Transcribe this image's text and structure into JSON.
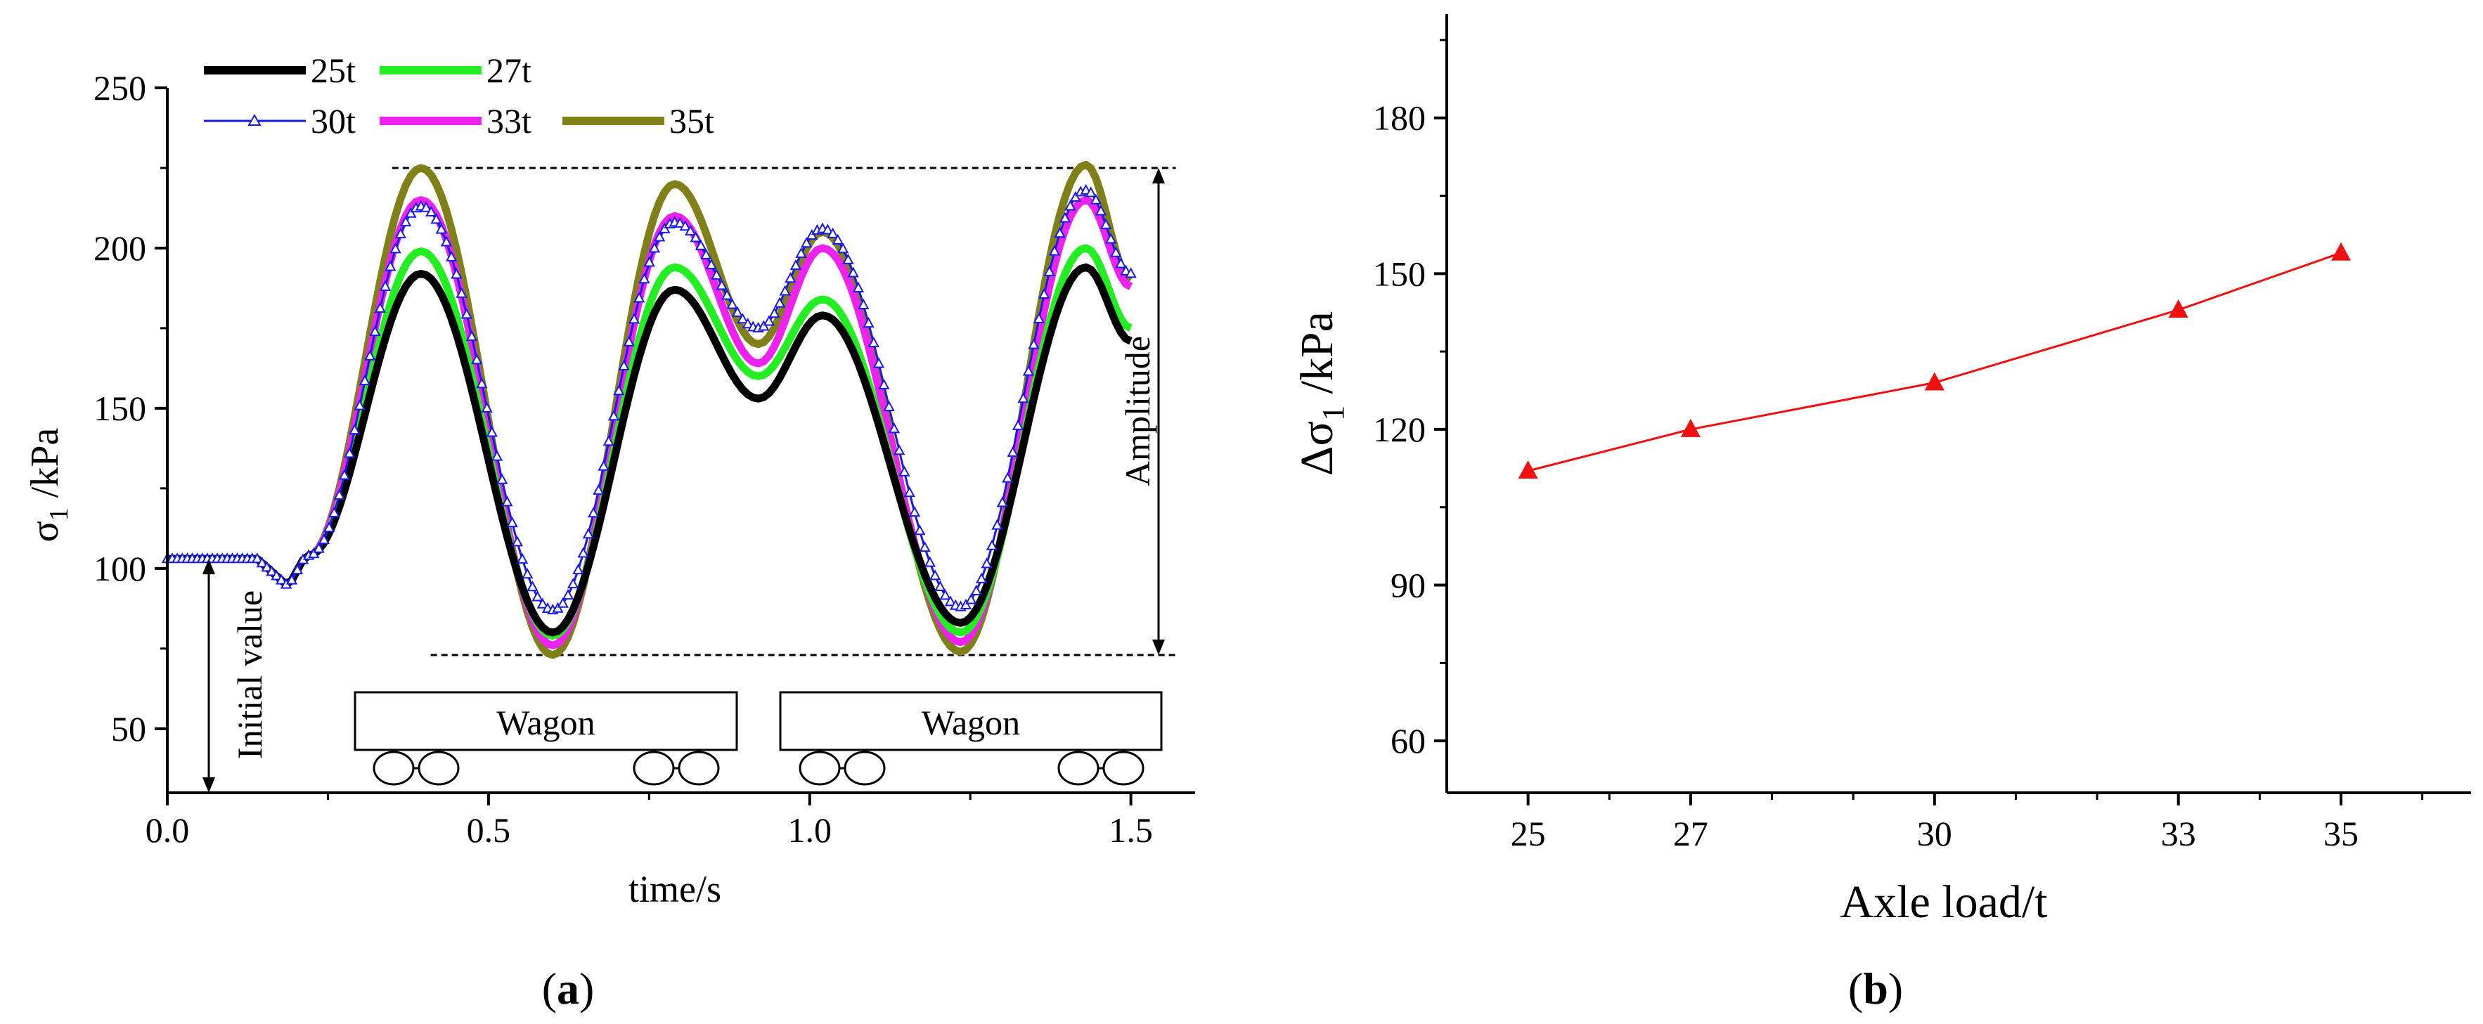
{
  "chart_data": [
    {
      "panel_label": "(a)",
      "panel_letter": "a",
      "type": "line",
      "title": "",
      "xlabel": "time/s",
      "ylabel_main": "σ",
      "ylabel_sub": "1",
      "ylabel_rest": " /kPa",
      "xlim": [
        0,
        1.6
      ],
      "ylim": [
        30,
        250
      ],
      "xticks": [
        0.0,
        0.5,
        1.0,
        1.5
      ],
      "xtick_labels": [
        "0.0",
        "0.5",
        "1.0",
        "1.5"
      ],
      "yticks": [
        50,
        100,
        150,
        200,
        250
      ],
      "ytick_labels": [
        "50",
        "100",
        "150",
        "200",
        "250"
      ],
      "initial_value": 103,
      "legend_position": "top-left",
      "series": [
        {
          "name": "25t",
          "color": "#000000",
          "peaks": [
            192,
            153,
            179,
            83,
            194,
            171
          ],
          "min1": 80
        },
        {
          "name": "27t",
          "color": "#22ee22",
          "peaks": [
            199,
            160,
            184,
            80,
            200,
            175
          ],
          "min1": 79
        },
        {
          "name": "30t",
          "color": "#1a1ae6",
          "peaks": [
            213,
            175,
            206,
            88,
            218,
            192
          ],
          "min1": 87
        },
        {
          "name": "33t",
          "color": "#ee22ee",
          "peaks": [
            215,
            164,
            200,
            77,
            215,
            188
          ],
          "min1": 76
        },
        {
          "name": "35t",
          "color": "#808018",
          "peaks": [
            225,
            170,
            205,
            74,
            226,
            190
          ],
          "min1": 73
        }
      ],
      "annotations": {
        "initial_value_label": "Initial value",
        "amplitude_label": "Amplitude",
        "wagon_label_1": "Wagon",
        "wagon_label_2": "Wagon",
        "amplitude_top": 225,
        "amplitude_bottom": 73
      }
    },
    {
      "panel_label": "(b)",
      "panel_letter": "b",
      "type": "line",
      "title": "",
      "xlabel": "Axle load/t",
      "ylabel_main": "Δσ",
      "ylabel_sub": "1",
      "ylabel_rest": " /kPa",
      "xlim": [
        24,
        36.6
      ],
      "ylim": [
        50,
        200
      ],
      "xticks": [
        25,
        27,
        30,
        33,
        35
      ],
      "xtick_labels": [
        "25",
        "27",
        "30",
        "33",
        "35"
      ],
      "yticks": [
        60,
        90,
        120,
        150,
        180
      ],
      "ytick_labels": [
        "60",
        "90",
        "120",
        "150",
        "180"
      ],
      "color": "#ee1111",
      "marker": "triangle",
      "x": [
        25,
        27,
        30,
        33,
        35
      ],
      "y": [
        112,
        120,
        129,
        143,
        154
      ]
    }
  ]
}
